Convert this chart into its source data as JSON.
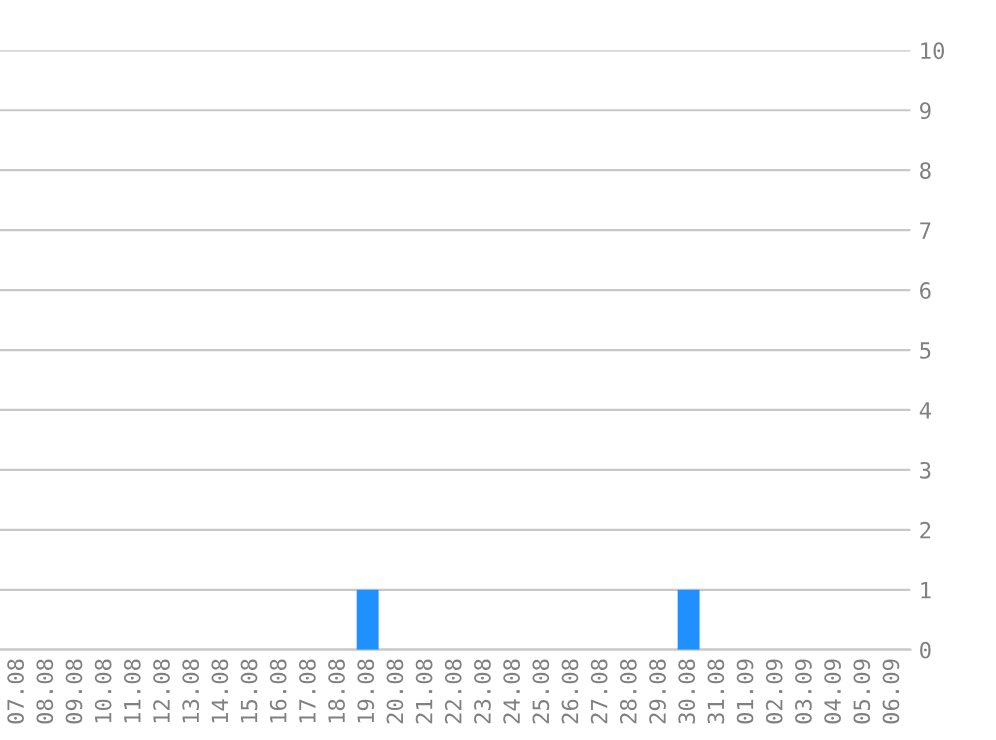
{
  "chart_data": {
    "type": "bar",
    "categories": [
      "07.08",
      "08.08",
      "09.08",
      "10.08",
      "11.08",
      "12.08",
      "13.08",
      "14.08",
      "15.08",
      "16.08",
      "17.08",
      "18.08",
      "19.08",
      "20.08",
      "21.08",
      "22.08",
      "23.08",
      "24.08",
      "25.08",
      "26.08",
      "27.08",
      "28.08",
      "29.08",
      "30.08",
      "31.08",
      "01.09",
      "02.09",
      "03.09",
      "04.09",
      "05.09",
      "06.09"
    ],
    "values": [
      0,
      0,
      0,
      0,
      0,
      0,
      0,
      0,
      0,
      0,
      0,
      0,
      1,
      0,
      0,
      0,
      0,
      0,
      0,
      0,
      0,
      0,
      0,
      1,
      0,
      0,
      0,
      0,
      0,
      0,
      0
    ],
    "color": "#1e90ff",
    "ylim": [
      0,
      10
    ],
    "yticks": [
      0,
      1,
      2,
      3,
      4,
      5,
      6,
      7,
      8,
      9,
      10
    ],
    "grid": "y"
  }
}
